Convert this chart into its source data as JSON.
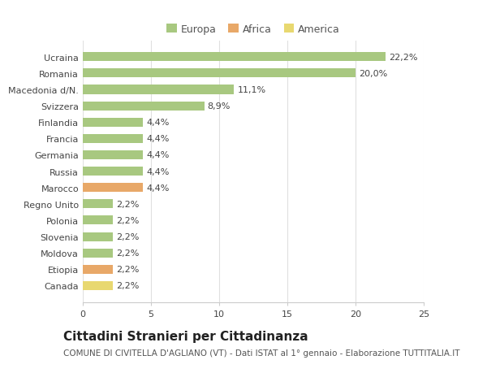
{
  "categories": [
    "Canada",
    "Etiopia",
    "Moldova",
    "Slovenia",
    "Polonia",
    "Regno Unito",
    "Marocco",
    "Russia",
    "Germania",
    "Francia",
    "Finlandia",
    "Svizzera",
    "Macedonia d/N.",
    "Romania",
    "Ucraina"
  ],
  "values": [
    2.2,
    2.2,
    2.2,
    2.2,
    2.2,
    2.2,
    4.4,
    4.4,
    4.4,
    4.4,
    4.4,
    8.9,
    11.1,
    20.0,
    22.2
  ],
  "colors": [
    "#e8d870",
    "#e8a868",
    "#a8c880",
    "#a8c880",
    "#a8c880",
    "#a8c880",
    "#e8a868",
    "#a8c880",
    "#a8c880",
    "#a8c880",
    "#a8c880",
    "#a8c880",
    "#a8c880",
    "#a8c880",
    "#a8c880"
  ],
  "labels": [
    "2,2%",
    "2,2%",
    "2,2%",
    "2,2%",
    "2,2%",
    "2,2%",
    "4,4%",
    "4,4%",
    "4,4%",
    "4,4%",
    "4,4%",
    "8,9%",
    "11,1%",
    "20,0%",
    "22,2%"
  ],
  "legend_labels": [
    "Europa",
    "Africa",
    "America"
  ],
  "legend_colors": [
    "#a8c880",
    "#e8a868",
    "#e8d870"
  ],
  "title": "Cittadini Stranieri per Cittadinanza",
  "subtitle": "COMUNE DI CIVITELLA D'AGLIANO (VT) - Dati ISTAT al 1° gennaio - Elaborazione TUTTITALIA.IT",
  "xlim": [
    0,
    25
  ],
  "xticks": [
    0,
    5,
    10,
    15,
    20,
    25
  ],
  "background_color": "#ffffff",
  "bar_background": "#ffffff",
  "title_fontsize": 11,
  "subtitle_fontsize": 7.5,
  "label_fontsize": 8,
  "tick_fontsize": 8
}
